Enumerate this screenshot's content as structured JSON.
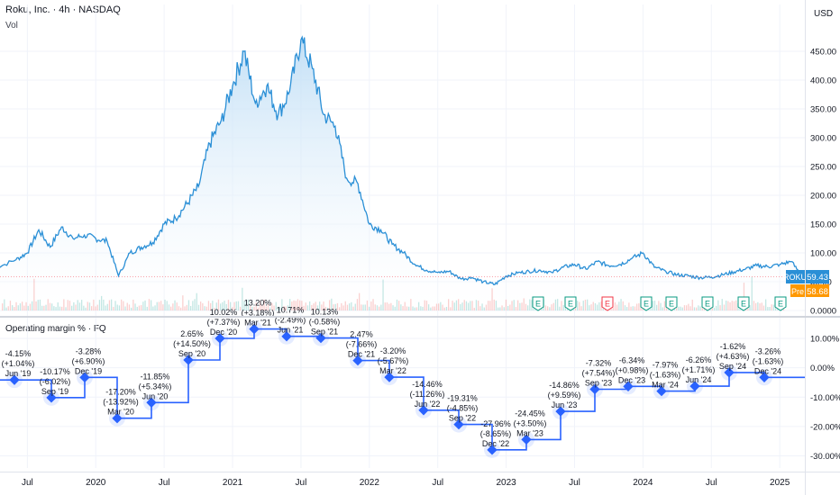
{
  "header": {
    "symbol_title": "Roku, Inc. · 4h · NASDAQ",
    "volume_label": "Vol",
    "currency": "USD",
    "indicator_title": "Operating margin % · FQ"
  },
  "price_badges": {
    "symbol": "ROKU",
    "last_price": "59.43",
    "pre_label": "Pre",
    "pre_price": "58.68",
    "earnings_marker": "E"
  },
  "colors": {
    "price_line": "#2a8fd6",
    "area_top": "#bcdcf5",
    "area_bottom": "#ffffff",
    "margin_line": "#2962ff",
    "margin_dot": "#2962ff",
    "earnings_green": "#089981",
    "earnings_red": "#f23645",
    "last_price_badge": "#2a8fd6",
    "pre_badge": "#ff9800",
    "grid": "#f0f3fa"
  },
  "chart_data": [
    {
      "type": "area",
      "title": "Roku, Inc. · 4h · NASDAQ",
      "y_ticks": [
        "450.00",
        "400.00",
        "350.00",
        "300.00",
        "250.00",
        "200.00",
        "150.00",
        "100.00",
        "50.00",
        "0.0000"
      ],
      "x_ticks": [
        "Jul",
        "2020",
        "Jul",
        "2021",
        "Jul",
        "2022",
        "Jul",
        "2023",
        "Jul",
        "2024",
        "Jul",
        "2025"
      ],
      "ylim": [
        0,
        500
      ],
      "grid": true,
      "series": [
        {
          "x": [
            "2019-04",
            "2019-06",
            "2019-07",
            "2019-08",
            "2019-09",
            "2019-10",
            "2019-11",
            "2019-12",
            "2020-01",
            "2020-02",
            "2020-03",
            "2020-04",
            "2020-05",
            "2020-06",
            "2020-07",
            "2020-08",
            "2020-09",
            "2020-10",
            "2020-11",
            "2020-12",
            "2021-01",
            "2021-02",
            "2021-03",
            "2021-04",
            "2021-05",
            "2021-06",
            "2021-07",
            "2021-08",
            "2021-09",
            "2021-10",
            "2021-11",
            "2021-12",
            "2022-01",
            "2022-02",
            "2022-03",
            "2022-04",
            "2022-05",
            "2022-06",
            "2022-07",
            "2022-08",
            "2022-09",
            "2022-10",
            "2022-11",
            "2022-12",
            "2023-01",
            "2023-02",
            "2023-03",
            "2023-04",
            "2023-05",
            "2023-06",
            "2023-07",
            "2023-08",
            "2023-09",
            "2023-10",
            "2023-11",
            "2023-12",
            "2024-01",
            "2024-02",
            "2024-03",
            "2024-04",
            "2024-05",
            "2024-06",
            "2024-07",
            "2024-08",
            "2024-09",
            "2024-10",
            "2024-11",
            "2024-12",
            "2025-01",
            "2025-02",
            "2025-03"
          ],
          "values": [
            72,
            88,
            100,
            140,
            110,
            145,
            125,
            131,
            125,
            120,
            60,
            100,
            110,
            118,
            150,
            160,
            185,
            215,
            290,
            330,
            390,
            450,
            360,
            390,
            340,
            380,
            470,
            420,
            340,
            320,
            230,
            220,
            150,
            140,
            115,
            100,
            80,
            70,
            66,
            68,
            55,
            57,
            50,
            45,
            60,
            65,
            68,
            70,
            66,
            75,
            80,
            72,
            85,
            78,
            80,
            90,
            100,
            75,
            68,
            62,
            60,
            57,
            58,
            62,
            67,
            72,
            78,
            76,
            80,
            85,
            59
          ]
        }
      ]
    },
    {
      "type": "line",
      "title": "Operating margin % · FQ",
      "y_ticks": [
        "10.00%",
        "0.00%",
        "-10.00%",
        "-20.00%",
        "-30.00%"
      ],
      "ylim": [
        -32,
        14
      ],
      "grid": true,
      "points": [
        {
          "x": "2019-04",
          "value": -4.15,
          "label": "-4.15%",
          "change": "(+1.04%)",
          "quarter": "Jun '19"
        },
        {
          "x": "2019-07",
          "value": -10.17,
          "label": "-10.17%",
          "change": "(-6.02%)",
          "quarter": "Sep '19"
        },
        {
          "x": "2019-10",
          "value": -3.28,
          "label": "-3.28%",
          "change": "(+6.90%)",
          "quarter": "Dec '19"
        },
        {
          "x": "2020-01",
          "value": -17.2,
          "label": "-17.20%",
          "change": "(-13.92%)",
          "quarter": "Mar '20"
        },
        {
          "x": "2020-04",
          "value": -11.85,
          "label": "-11.85%",
          "change": "(+5.34%)",
          "quarter": "Jun '20"
        },
        {
          "x": "2020-07",
          "value": 2.65,
          "label": "2.65%",
          "change": "(+14.50%)",
          "quarter": "Sep '20"
        },
        {
          "x": "2020-10",
          "value": 10.02,
          "label": "10.02%",
          "change": "(+7.37%)",
          "quarter": "Dec '20"
        },
        {
          "x": "2021-01",
          "value": 13.2,
          "label": "13.20%",
          "change": "(+3.18%)",
          "quarter": "Mar '21"
        },
        {
          "x": "2021-04",
          "value": 10.71,
          "label": "10.71%",
          "change": "(-2.49%)",
          "quarter": "Jun '21"
        },
        {
          "x": "2021-07",
          "value": 10.13,
          "label": "10.13%",
          "change": "(-0.58%)",
          "quarter": "Sep '21"
        },
        {
          "x": "2021-10",
          "value": 2.47,
          "label": "2.47%",
          "change": "(-7.66%)",
          "quarter": "Dec '21"
        },
        {
          "x": "2022-01",
          "value": -3.2,
          "label": "-3.20%",
          "change": "(-5.67%)",
          "quarter": "Mar '22"
        },
        {
          "x": "2022-04",
          "value": -14.46,
          "label": "-14.46%",
          "change": "(-11.26%)",
          "quarter": "Jun '22"
        },
        {
          "x": "2022-07",
          "value": -19.31,
          "label": "-19.31%",
          "change": "(-4.85%)",
          "quarter": "Sep '22"
        },
        {
          "x": "2022-10",
          "value": -27.96,
          "label": "-27.96%",
          "change": "(-8.65%)",
          "quarter": "Dec '22"
        },
        {
          "x": "2023-01",
          "value": -24.45,
          "label": "-24.45%",
          "change": "(+3.50%)",
          "quarter": "Mar '23"
        },
        {
          "x": "2023-04",
          "value": -14.86,
          "label": "-14.86%",
          "change": "(+9.59%)",
          "quarter": "Jun '23"
        },
        {
          "x": "2023-07",
          "value": -7.32,
          "label": "-7.32%",
          "change": "(+7.54%)",
          "quarter": "Sep '23"
        },
        {
          "x": "2023-10",
          "value": -6.34,
          "label": "-6.34%",
          "change": "(+0.98%)",
          "quarter": "Dec '23"
        },
        {
          "x": "2024-01",
          "value": -7.97,
          "label": "-7.97%",
          "change": "(-1.63%)",
          "quarter": "Mar '24"
        },
        {
          "x": "2024-04",
          "value": -6.26,
          "label": "-6.26%",
          "change": "(+1.71%)",
          "quarter": "Jun '24"
        },
        {
          "x": "2024-07",
          "value": -1.62,
          "label": "-1.62%",
          "change": "(+4.63%)",
          "quarter": "Sep '24"
        },
        {
          "x": "2024-10",
          "value": -3.26,
          "label": "-3.26%",
          "change": "(-1.63%)",
          "quarter": "Dec '24"
        }
      ]
    }
  ]
}
